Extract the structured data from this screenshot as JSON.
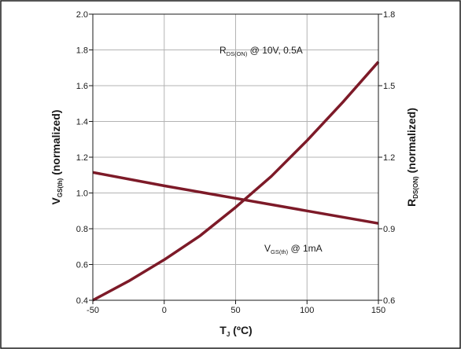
{
  "chart_data": {
    "type": "line",
    "colors": {
      "series": "#7d1a28"
    },
    "grid": true,
    "x_axis": {
      "label_main": "T",
      "label_sub": "J",
      "label_tail": " (ºC)",
      "range": [
        -50,
        150
      ],
      "ticks": [
        -50,
        0,
        50,
        100,
        150
      ],
      "tick_labels": [
        "-50",
        "0",
        "50",
        "100",
        "150"
      ]
    },
    "y_left": {
      "label_main": "V",
      "label_sub": "GS(th)",
      "label_tail": " (normalized)",
      "range": [
        0.4,
        2.0
      ],
      "ticks": [
        0.4,
        0.6,
        0.8,
        1.0,
        1.2,
        1.4,
        1.6,
        1.8,
        2.0
      ],
      "tick_labels": [
        "0.4",
        "0.6",
        "0.8",
        "1.0",
        "1.2",
        "1.4",
        "1.6",
        "1.8",
        "2.0"
      ]
    },
    "y_right": {
      "label_main": "R",
      "label_sub": "DS(ON)",
      "label_tail": " (normalized)",
      "range": [
        0.6,
        1.8
      ],
      "ticks": [
        0.6,
        0.9,
        1.2,
        1.5,
        1.8
      ],
      "tick_labels": [
        "0.6",
        "0.9",
        "1.2",
        "1.5",
        "1.8"
      ]
    },
    "series": [
      {
        "axis": "right",
        "label_main": "R",
        "label_sub": "DS(ON)",
        "label_tail": " @ 10V, 0.5A",
        "x": [
          -50,
          -25,
          0,
          25,
          50,
          75,
          100,
          125,
          150
        ],
        "y": [
          0.6,
          0.68,
          0.77,
          0.87,
          0.99,
          1.12,
          1.27,
          1.43,
          1.6
        ]
      },
      {
        "axis": "left",
        "label_main": "V",
        "label_sub": "GS(th)",
        "label_tail": " @ 1mA",
        "x": [
          -50,
          0,
          50,
          100,
          150
        ],
        "y": [
          1.115,
          1.04,
          0.97,
          0.9,
          0.83
        ]
      }
    ]
  }
}
